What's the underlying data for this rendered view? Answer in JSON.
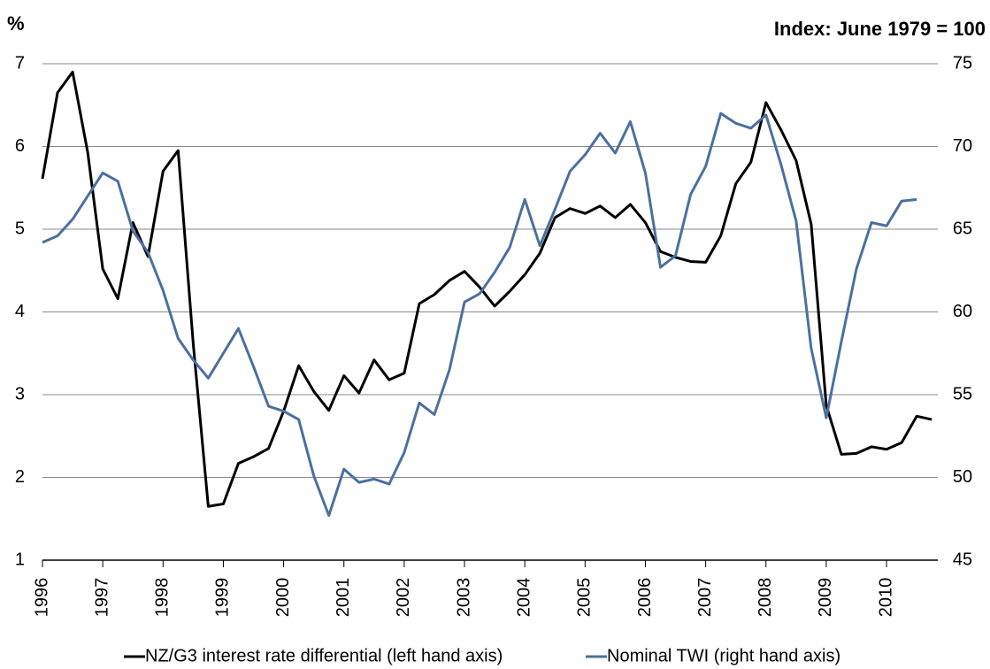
{
  "chart_data": {
    "type": "line",
    "left_axis_title": "%",
    "right_axis_title": "Index: June 1979 = 100",
    "x": [
      1996,
      1996.25,
      1996.5,
      1996.75,
      1997,
      1997.25,
      1997.5,
      1997.75,
      1998,
      1998.25,
      1998.5,
      1998.75,
      1999,
      1999.25,
      1999.5,
      1999.75,
      2000,
      2000.25,
      2000.5,
      2000.75,
      2001,
      2001.25,
      2001.5,
      2001.75,
      2002,
      2002.25,
      2002.5,
      2002.75,
      2003,
      2003.25,
      2003.5,
      2003.75,
      2004,
      2004.25,
      2004.5,
      2004.75,
      2005,
      2005.25,
      2005.5,
      2005.75,
      2006,
      2006.25,
      2006.5,
      2006.75,
      2007,
      2007.25,
      2007.5,
      2007.75,
      2008,
      2008.25,
      2008.5,
      2008.75,
      2009,
      2009.25,
      2009.5,
      2009.75,
      2010,
      2010.25,
      2010.5,
      2010.75
    ],
    "xlim": [
      1996,
      2010.85
    ],
    "xticks": [
      1996,
      1997,
      1998,
      1999,
      2000,
      2001,
      2002,
      2003,
      2004,
      2005,
      2006,
      2007,
      2008,
      2009,
      2010
    ],
    "ylim": [
      1,
      7
    ],
    "yticks": [
      1,
      2,
      3,
      4,
      5,
      6,
      7
    ],
    "y2lim": [
      45,
      75
    ],
    "y2ticks": [
      45,
      50,
      55,
      60,
      65,
      70,
      75
    ],
    "grid": true,
    "legend": "bottom",
    "series": [
      {
        "name": "NZ/G3 interest rate differential (left hand axis)",
        "color": "#000000",
        "values": [
          5.61,
          6.65,
          6.9,
          5.93,
          4.52,
          4.16,
          5.08,
          4.67,
          5.7,
          5.95,
          3.62,
          1.65,
          1.68,
          2.17,
          2.25,
          2.35,
          2.8,
          3.35,
          3.04,
          2.81,
          3.23,
          3.02,
          3.42,
          3.18,
          3.26,
          4.1,
          4.21,
          4.38,
          4.49,
          4.3,
          4.07,
          4.25,
          4.45,
          4.71,
          5.14,
          5.25,
          5.19,
          5.28,
          5.14,
          5.3,
          5.08,
          4.73,
          4.66,
          4.61,
          4.6,
          4.92,
          5.55,
          5.81,
          6.53,
          6.2,
          5.83,
          5.06,
          2.87,
          2.28,
          2.29,
          2.37,
          2.34,
          2.42,
          2.74,
          2.7
        ]
      },
      {
        "name": "Nominal TWI (right hand axis)",
        "color": "#4a70a0",
        "axis": "y2",
        "values": [
          64.2,
          64.6,
          65.6,
          67.0,
          68.4,
          67.9,
          64.9,
          63.6,
          61.3,
          58.4,
          57.1,
          56.0,
          57.5,
          59.0,
          56.7,
          54.3,
          54.0,
          53.5,
          50.1,
          47.7,
          50.5,
          49.7,
          49.9,
          49.6,
          51.5,
          54.5,
          53.8,
          56.5,
          60.6,
          61.1,
          62.4,
          63.9,
          66.8,
          64.0,
          66.2,
          68.5,
          69.5,
          70.8,
          69.6,
          71.5,
          68.4,
          62.7,
          63.4,
          67.1,
          68.8,
          72.0,
          71.4,
          71.1,
          71.9,
          68.9,
          65.5,
          57.8,
          53.6,
          58.2,
          62.6,
          65.4,
          65.2,
          66.7,
          66.8,
          null
        ]
      }
    ]
  }
}
